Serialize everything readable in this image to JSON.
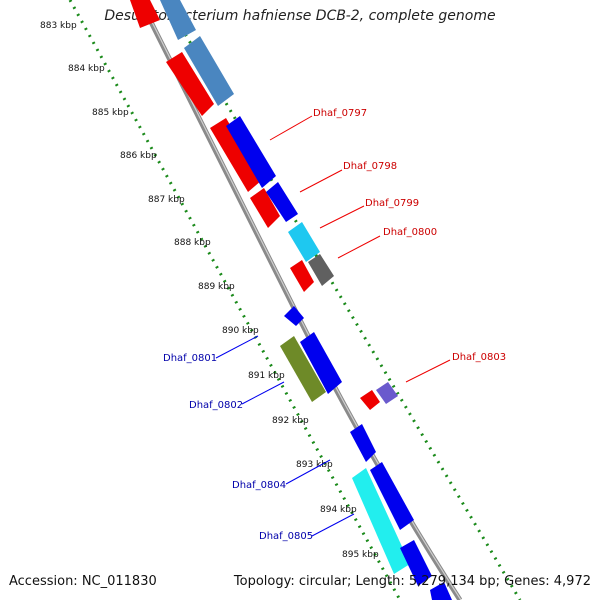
{
  "title": "Desulfitobacterium hafniense DCB-2, complete genome",
  "accession": "Accession: NC_011830",
  "summary": "Topology: circular; Length: 5,279,134 bp; Genes: 4,972",
  "colors": {
    "forward_strand": "#0000ee",
    "reverse_strand": "#ee0000",
    "steelblue": "#4a86c0",
    "lightblue": "#1ec8f0",
    "gray": "#606060",
    "olive": "#6e8a28",
    "purple": "#6a5acd",
    "cyan": "#22eeee",
    "backbone": "#8a8a8a",
    "tick": "#1a8a1a"
  },
  "kbp_labels": [
    "883 kbp",
    "884 kbp",
    "885 kbp",
    "886 kbp",
    "887 kbp",
    "888 kbp",
    "889 kbp",
    "890 kbp",
    "891 kbp",
    "892 kbp",
    "893 kbp",
    "894 kbp",
    "895 kbp"
  ],
  "gene_labels_right": [
    "Dhaf_0797",
    "Dhaf_0798",
    "Dhaf_0799",
    "Dhaf_0800",
    "Dhaf_0803"
  ],
  "gene_labels_left": [
    "Dhaf_0801",
    "Dhaf_0802",
    "Dhaf_0804",
    "Dhaf_0805"
  ]
}
